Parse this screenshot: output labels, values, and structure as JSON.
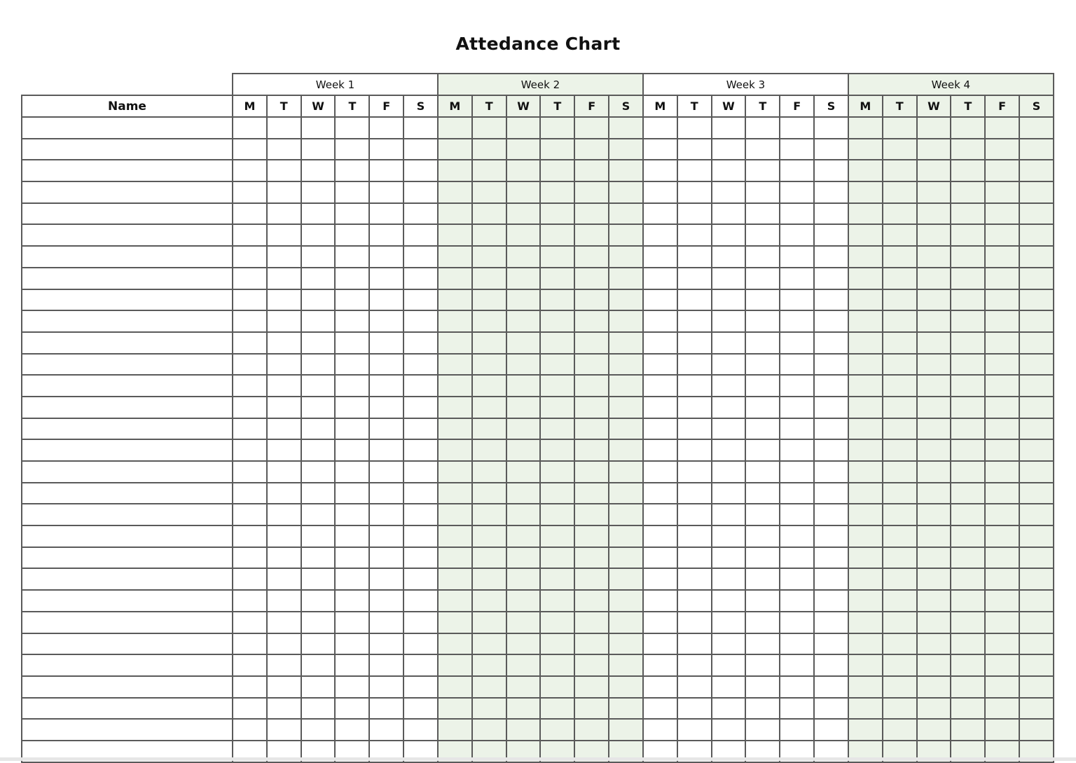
{
  "title": "Attedance Chart",
  "name_header": "Name",
  "weeks": [
    "Week 1",
    "Week 2",
    "Week 3",
    "Week 4"
  ],
  "days": [
    "M",
    "T",
    "W",
    "T",
    "F",
    "S"
  ],
  "shaded_weeks": [
    2,
    4
  ],
  "colors": {
    "shade": "#ecf3e8",
    "grid": "#5a5a5a"
  },
  "rows": [
    "",
    "",
    "",
    "",
    "",
    "",
    "",
    "",
    "",
    "",
    "",
    "",
    "",
    "",
    "",
    "",
    "",
    "",
    "",
    "",
    "",
    "",
    "",
    "",
    "",
    "",
    "",
    "",
    "",
    ""
  ]
}
